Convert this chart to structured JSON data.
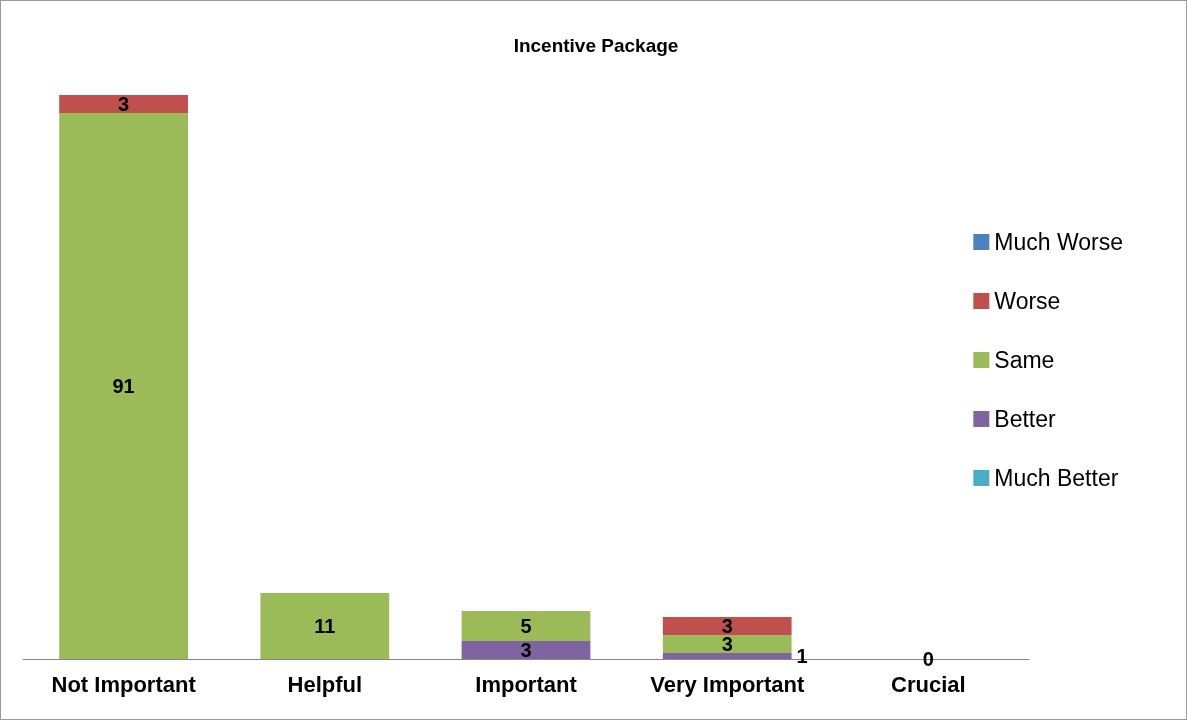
{
  "chart_data": {
    "type": "bar",
    "title": "Incentive Package",
    "stacked": true,
    "legend": "right",
    "tick_labels": "x",
    "categories": [
      "Not Important",
      "Helpful",
      "Important",
      "Very Important",
      "Crucial"
    ],
    "series": [
      {
        "name": "Much Better",
        "color": "#4bacc6",
        "values": [
          null,
          null,
          null,
          null,
          null
        ]
      },
      {
        "name": "Better",
        "color": "#8064a2",
        "values": [
          null,
          null,
          3,
          1,
          null
        ],
        "value_labels": [
          null,
          null,
          "3",
          "1",
          null
        ]
      },
      {
        "name": "Same",
        "color": "#9bbb59",
        "values": [
          91,
          11,
          5,
          3,
          0
        ],
        "value_labels": [
          "91",
          "11",
          "5",
          "3",
          "0"
        ]
      },
      {
        "name": "Worse",
        "color": "#c0504d",
        "values": [
          3,
          null,
          null,
          3,
          null
        ],
        "value_labels": [
          "3",
          null,
          null,
          "3",
          null
        ]
      },
      {
        "name": "Much Worse",
        "color": "#4f81bd",
        "values": [
          null,
          null,
          null,
          null,
          null
        ]
      }
    ]
  }
}
